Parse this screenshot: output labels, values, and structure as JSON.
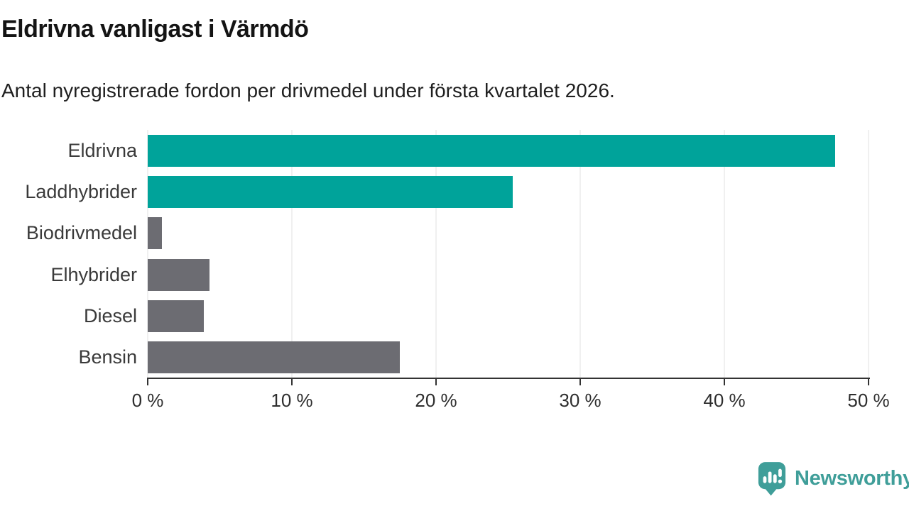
{
  "header": {
    "title": "Eldrivna vanligast i Värmdö",
    "subtitle": "Antal nyregistrerade fordon per drivmedel under första kvartalet 2026."
  },
  "chart_data": {
    "type": "bar",
    "orientation": "horizontal",
    "title": "Eldrivna vanligast i Värmdö",
    "subtitle": "Antal nyregistrerade fordon per drivmedel under första kvartalet 2026.",
    "categories": [
      "Eldrivna",
      "Laddhybrider",
      "Biodrivmedel",
      "Elhybrider",
      "Diesel",
      "Bensin"
    ],
    "values": [
      47.7,
      25.3,
      1.0,
      4.3,
      3.9,
      17.5
    ],
    "bar_colors": [
      "#00a39a",
      "#00a39a",
      "#6c6c72",
      "#6c6c72",
      "#6c6c72",
      "#6c6c72"
    ],
    "xlabel": "",
    "ylabel": "",
    "xlim": [
      0,
      50
    ],
    "xticks": [
      0,
      10,
      20,
      30,
      40,
      50
    ],
    "xtick_labels": [
      "0 %",
      "10 %",
      "20 %",
      "30 %",
      "40 %",
      "50 %"
    ],
    "grid": "vertical",
    "legend": "none",
    "unit": "percent"
  },
  "branding": {
    "logo_text": "Newsworthy",
    "logo_icon": "newsworthy-speech-bubble-chart-icon",
    "logo_color": "#3f9e99"
  },
  "colors": {
    "bar_teal": "#00a39a",
    "bar_gray": "#6c6c72",
    "axis": "#333333",
    "gridline": "#e2e2e2",
    "title_text": "#141414",
    "label_text": "#3a3a3a"
  }
}
